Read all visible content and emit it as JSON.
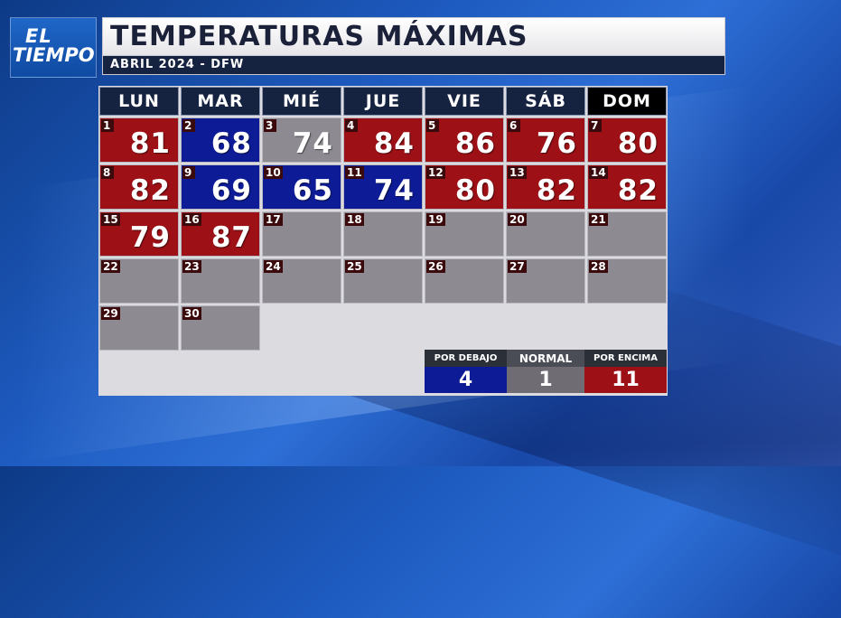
{
  "logo": {
    "line1": "EL",
    "line2": "TIEMPO"
  },
  "title": "TEMPERATURAS MÁXIMAS",
  "subtitle": "ABRIL 2024 - DFW",
  "colors": {
    "above": "#9c1016",
    "below": "#0d1c96",
    "normal": "#8d8a91",
    "header": "#152240"
  },
  "weekdays": [
    "LUN",
    "MAR",
    "MIÉ",
    "JUE",
    "VIE",
    "SÁB",
    "DOM"
  ],
  "days": [
    {
      "day": "1",
      "temp": "81",
      "status": "red"
    },
    {
      "day": "2",
      "temp": "68",
      "status": "blue"
    },
    {
      "day": "3",
      "temp": "74",
      "status": "gray"
    },
    {
      "day": "4",
      "temp": "84",
      "status": "red"
    },
    {
      "day": "5",
      "temp": "86",
      "status": "red"
    },
    {
      "day": "6",
      "temp": "76",
      "status": "red"
    },
    {
      "day": "7",
      "temp": "80",
      "status": "red"
    },
    {
      "day": "8",
      "temp": "82",
      "status": "red"
    },
    {
      "day": "9",
      "temp": "69",
      "status": "blue"
    },
    {
      "day": "10",
      "temp": "65",
      "status": "blue"
    },
    {
      "day": "11",
      "temp": "74",
      "status": "blue"
    },
    {
      "day": "12",
      "temp": "80",
      "status": "red"
    },
    {
      "day": "13",
      "temp": "82",
      "status": "red"
    },
    {
      "day": "14",
      "temp": "82",
      "status": "red"
    },
    {
      "day": "15",
      "temp": "79",
      "status": "red"
    },
    {
      "day": "16",
      "temp": "87",
      "status": "red"
    },
    {
      "day": "17",
      "temp": "",
      "status": "gray"
    },
    {
      "day": "18",
      "temp": "",
      "status": "gray"
    },
    {
      "day": "19",
      "temp": "",
      "status": "gray"
    },
    {
      "day": "20",
      "temp": "",
      "status": "gray"
    },
    {
      "day": "21",
      "temp": "",
      "status": "gray"
    },
    {
      "day": "22",
      "temp": "",
      "status": "gray"
    },
    {
      "day": "23",
      "temp": "",
      "status": "gray"
    },
    {
      "day": "24",
      "temp": "",
      "status": "gray"
    },
    {
      "day": "25",
      "temp": "",
      "status": "gray"
    },
    {
      "day": "26",
      "temp": "",
      "status": "gray"
    },
    {
      "day": "27",
      "temp": "",
      "status": "gray"
    },
    {
      "day": "28",
      "temp": "",
      "status": "gray"
    },
    {
      "day": "29",
      "temp": "",
      "status": "gray"
    },
    {
      "day": "30",
      "temp": "",
      "status": "gray"
    }
  ],
  "legend": [
    {
      "label": "POR DEBAJO",
      "count": "4",
      "status": "blue"
    },
    {
      "label": "NORMAL",
      "count": "1",
      "status": "gray"
    },
    {
      "label": "POR ENCIMA",
      "count": "11",
      "status": "red"
    }
  ]
}
